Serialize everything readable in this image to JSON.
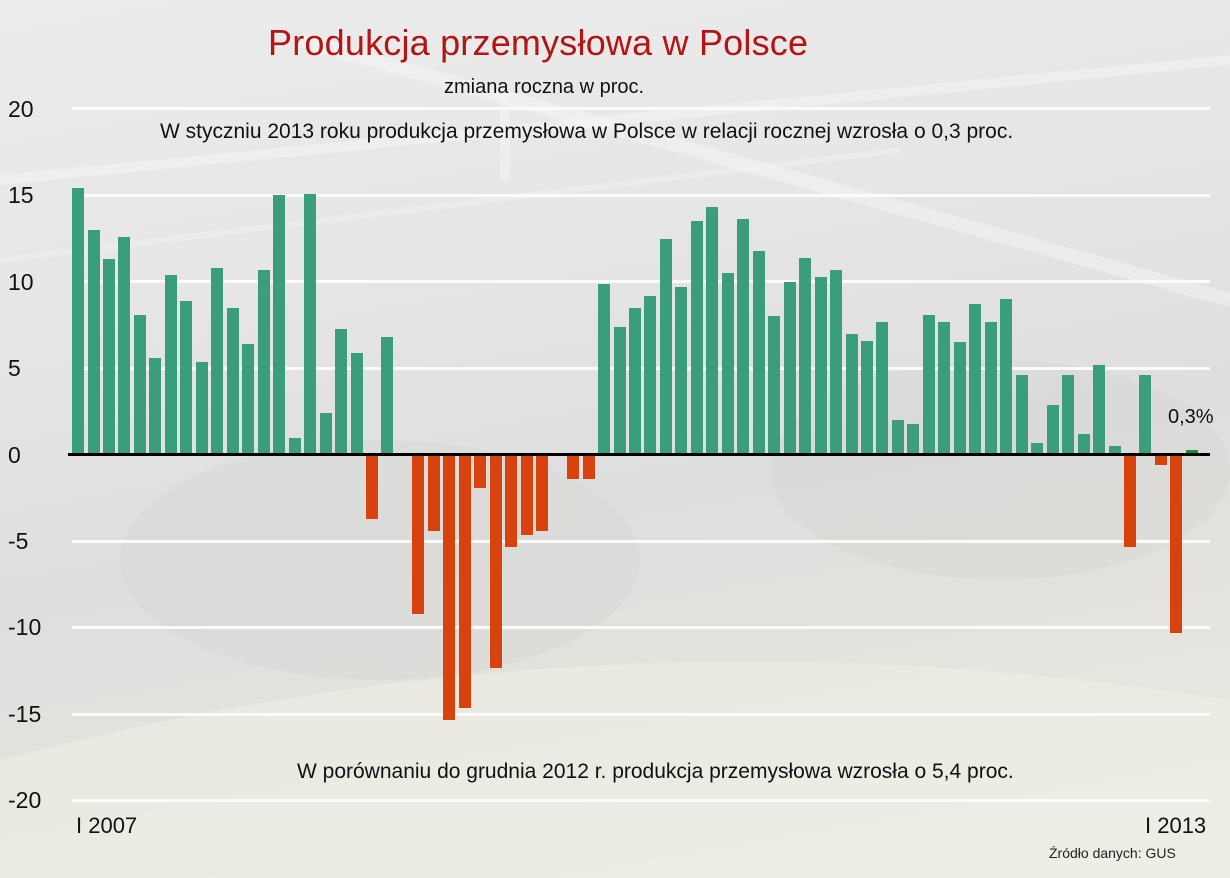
{
  "header": {
    "title": "Produkcja przemysłowa w Polsce",
    "subtitle": "zmiana roczna w proc."
  },
  "annotations": {
    "top": "W styczniu 2013 roku produkcja przemysłowa w Polsce w relacji rocznej wzrosła o 0,3 proc.",
    "bottom": "W porównaniu do grudnia 2012 r. produkcja przemysłowa wzrosła o 5,4 proc.",
    "last_value_label": "0,3%",
    "source": "Źródło danych: GUS"
  },
  "axis": {
    "y_ticks": [
      "20",
      "15",
      "10",
      "5",
      "0",
      "-5",
      "-10",
      "-15",
      "-20"
    ],
    "x_start_label": "I 2007",
    "x_end_label": "I 2013"
  },
  "colors": {
    "title": "#b21515",
    "positive": "#3a9e7c",
    "negative": "#d8420f",
    "highlight": "#1e8f35",
    "zero_line": "#000000",
    "grid": "#fbfbfb"
  },
  "chart_data": {
    "type": "bar",
    "title": "Produkcja przemysłowa w Polsce",
    "subtitle": "zmiana roczna w proc.",
    "xlabel": "",
    "ylabel": "",
    "ylim": [
      -20,
      20
    ],
    "y_ticks": [
      20,
      15,
      10,
      5,
      0,
      -5,
      -10,
      -15,
      -20
    ],
    "grid": true,
    "legend": null,
    "x_range": [
      "I 2007",
      "I 2013"
    ],
    "categories": [
      "2007-01",
      "2007-02",
      "2007-03",
      "2007-04",
      "2007-05",
      "2007-06",
      "2007-07",
      "2007-08",
      "2007-09",
      "2007-10",
      "2007-11",
      "2007-12",
      "2008-01",
      "2008-02",
      "2008-03",
      "2008-04",
      "2008-05",
      "2008-06",
      "2008-07",
      "2008-08",
      "2008-09",
      "2008-10",
      "2008-11",
      "2008-12",
      "2009-01",
      "2009-02",
      "2009-03",
      "2009-04",
      "2009-05",
      "2009-06",
      "2009-07",
      "2009-08",
      "2009-09",
      "2009-10",
      "2009-11",
      "2009-12",
      "2010-01",
      "2010-02",
      "2010-03",
      "2010-04",
      "2010-05",
      "2010-06",
      "2010-07",
      "2010-08",
      "2010-09",
      "2010-10",
      "2010-11",
      "2010-12",
      "2011-01",
      "2011-02",
      "2011-03",
      "2011-04",
      "2011-05",
      "2011-06",
      "2011-07",
      "2011-08",
      "2011-09",
      "2011-10",
      "2011-11",
      "2011-12",
      "2012-01",
      "2012-02",
      "2012-03",
      "2012-04",
      "2012-05",
      "2012-06",
      "2012-07",
      "2012-08",
      "2012-09",
      "2012-10",
      "2012-11",
      "2012-12",
      "2013-01"
    ],
    "values": [
      15.4,
      13.0,
      11.3,
      12.6,
      8.1,
      5.6,
      10.4,
      8.9,
      5.4,
      10.8,
      8.5,
      6.4,
      10.7,
      15.0,
      1.0,
      15.1,
      2.4,
      7.3,
      5.9,
      -3.7,
      6.8,
      0.0,
      -9.2,
      -4.4,
      -15.3,
      -14.6,
      -1.9,
      -12.3,
      -5.3,
      -4.6,
      -4.4,
      0.1,
      -1.4,
      -1.4,
      9.9,
      7.4,
      8.5,
      9.2,
      12.5,
      9.7,
      13.5,
      14.3,
      10.5,
      13.6,
      11.8,
      8.0,
      10.0,
      11.4,
      10.3,
      10.7,
      7.0,
      6.6,
      7.7,
      2.0,
      1.8,
      8.1,
      7.7,
      6.5,
      8.7,
      7.7,
      9.0,
      4.6,
      0.7,
      2.9,
      4.6,
      1.2,
      5.2,
      0.5,
      -5.3,
      4.6,
      -0.6,
      -10.3,
      0.3
    ],
    "annotations": [
      "W styczniu 2013 roku produkcja przemysłowa w Polsce w relacji rocznej wzrosła o 0,3 proc.",
      "W porównaniu do grudnia 2012 r. produkcja przemysłowa wzrosła o 5,4 proc.",
      "0,3%"
    ],
    "source": "Źródło danych: GUS"
  }
}
